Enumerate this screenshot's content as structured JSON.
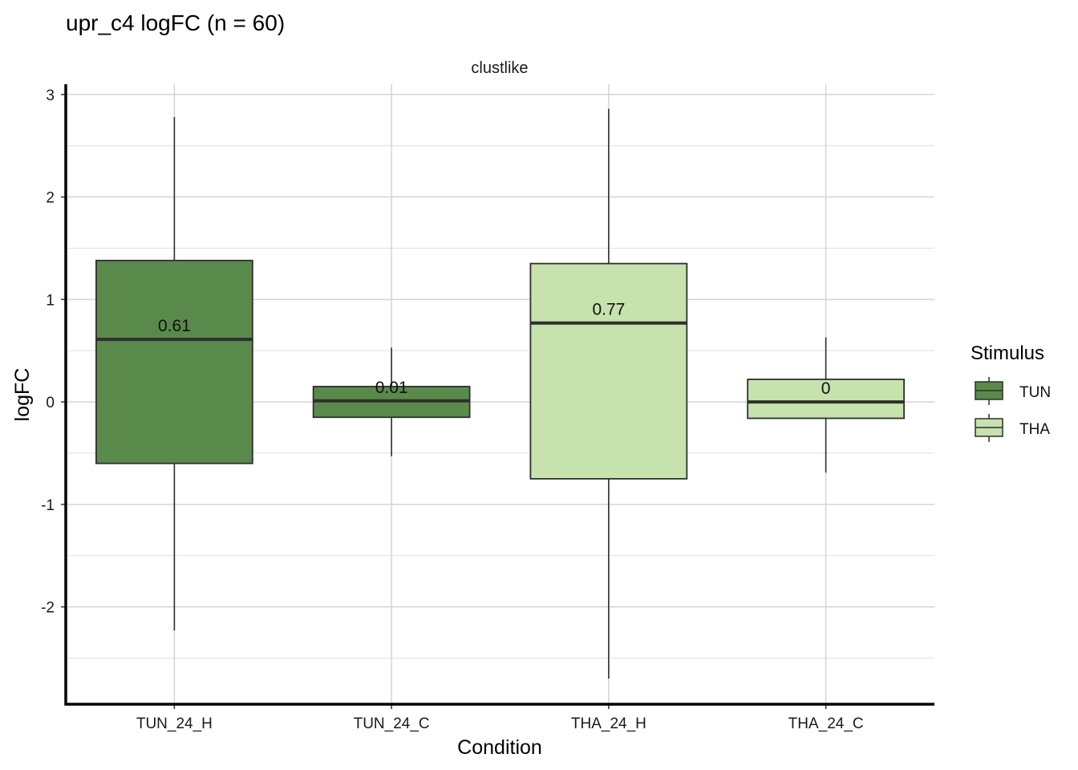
{
  "chart_data": {
    "type": "boxplot",
    "title": "upr_c4 logFC (n = 60)",
    "facet_label": "clustlike",
    "xlabel": "Condition",
    "ylabel": "logFC",
    "ylim": [
      -2.95,
      3.1
    ],
    "yticks": [
      -2,
      -1,
      0,
      1,
      2,
      3
    ],
    "grid": true,
    "legend": {
      "title": "Stimulus",
      "position": "right",
      "entries": [
        {
          "name": "TUN",
          "color": "#5a8a4b"
        },
        {
          "name": "THA",
          "color": "#c6e2ad"
        }
      ]
    },
    "categories": [
      "TUN_24_H",
      "TUN_24_C",
      "THA_24_H",
      "THA_24_C"
    ],
    "boxes": [
      {
        "category": "TUN_24_H",
        "stimulus": "TUN",
        "whisker_low": -2.23,
        "q1": -0.6,
        "median": 0.61,
        "q3": 1.38,
        "whisker_high": 2.78,
        "label": "0.61"
      },
      {
        "category": "TUN_24_C",
        "stimulus": "TUN",
        "whisker_low": -0.53,
        "q1": -0.15,
        "median": 0.01,
        "q3": 0.15,
        "whisker_high": 0.53,
        "label": "0.01"
      },
      {
        "category": "THA_24_H",
        "stimulus": "THA",
        "whisker_low": -2.7,
        "q1": -0.75,
        "median": 0.77,
        "q3": 1.35,
        "whisker_high": 2.86,
        "label": "0.77"
      },
      {
        "category": "THA_24_C",
        "stimulus": "THA",
        "whisker_low": -0.69,
        "q1": -0.16,
        "median": 0.0,
        "q3": 0.22,
        "whisker_high": 0.63,
        "label": "0"
      }
    ],
    "colors": {
      "TUN": "#5a8a4b",
      "THA": "#c6e2ad",
      "outline": "#2f2f2f",
      "grid": "#d4d4d4"
    }
  }
}
